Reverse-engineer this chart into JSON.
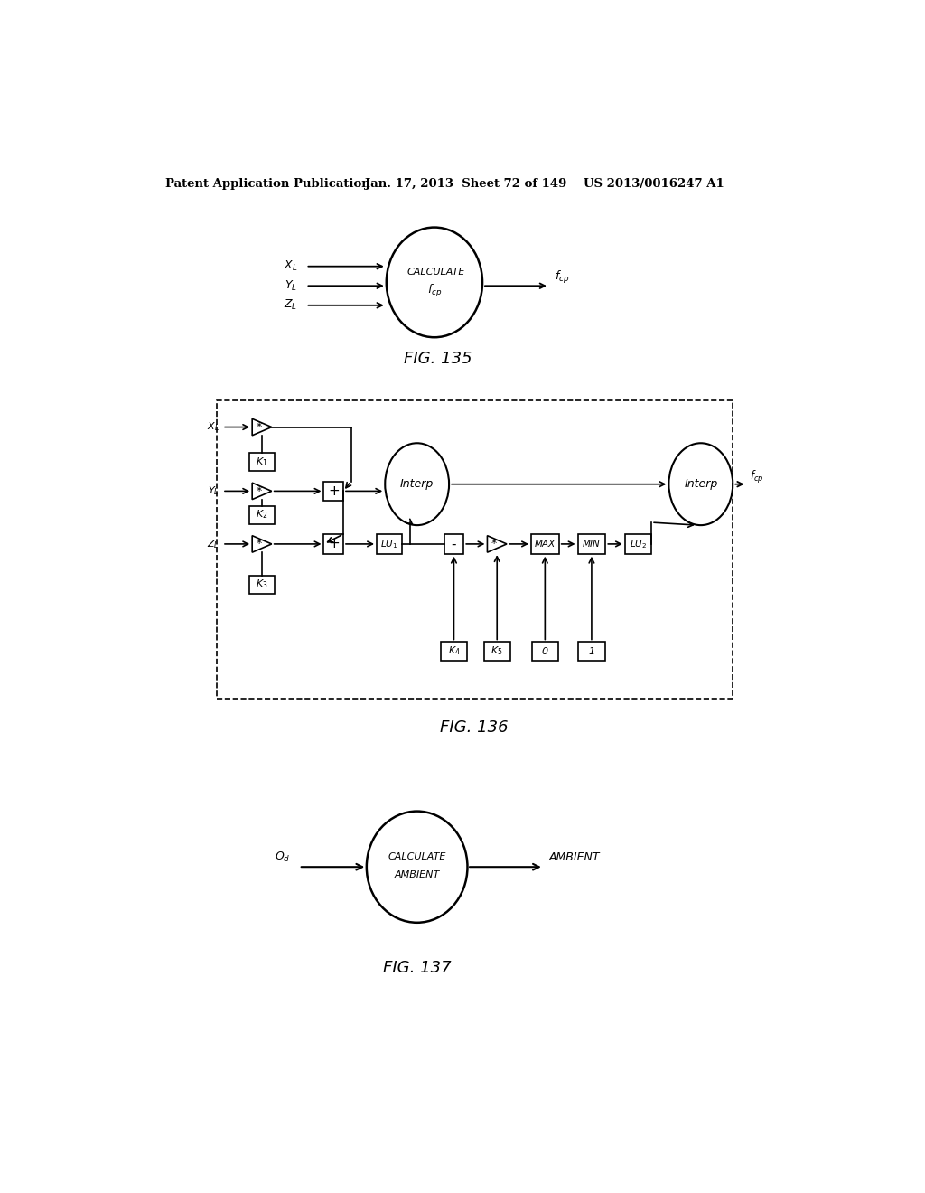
{
  "bg_color": "#ffffff",
  "header_text": "Patent Application Publication",
  "header_date": "Jan. 17, 2013  Sheet 72 of 149",
  "header_patent": "US 2013/0016247 A1",
  "fig135_label": "FIG. 135",
  "fig136_label": "FIG. 136",
  "fig137_label": "FIG. 137"
}
